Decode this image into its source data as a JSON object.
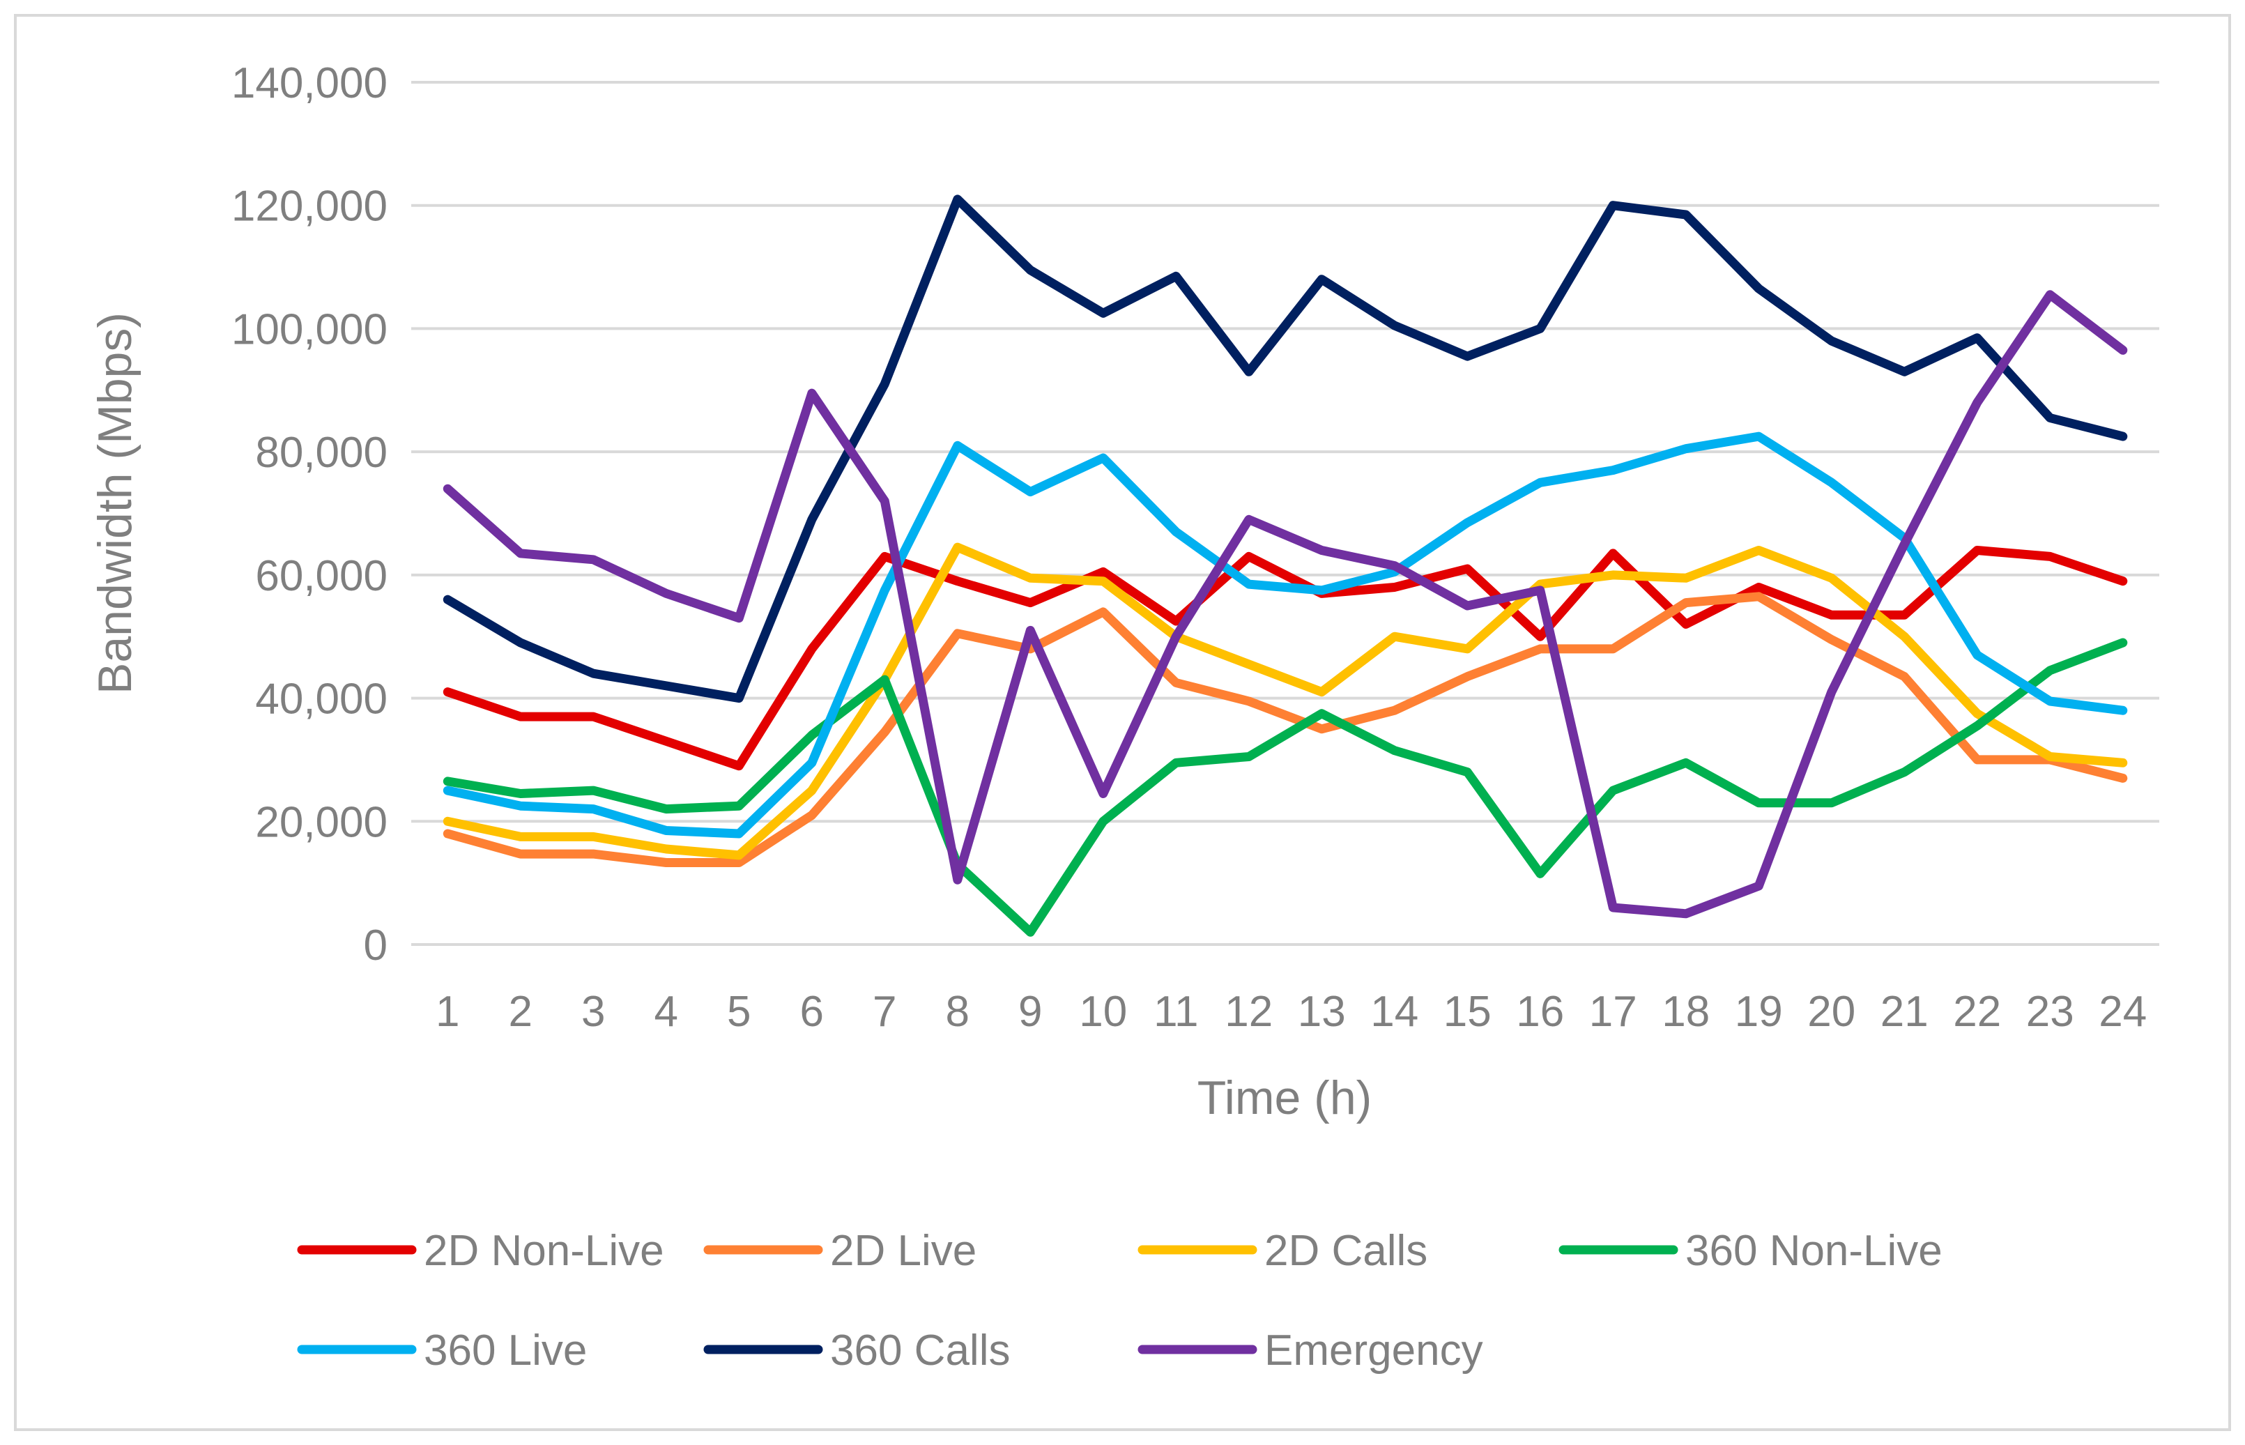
{
  "chart_data": {
    "type": "line",
    "title": "",
    "xlabel": "Time (h)",
    "ylabel": "Bandwidth (Mbps)",
    "ylim": [
      0,
      140000
    ],
    "yticks": [
      0,
      20000,
      40000,
      60000,
      80000,
      100000,
      120000,
      140000
    ],
    "ytick_labels": [
      "0",
      "20,000",
      "40,000",
      "60,000",
      "80,000",
      "100,000",
      "120,000",
      "140,000"
    ],
    "categories": [
      "1",
      "2",
      "3",
      "4",
      "5",
      "6",
      "7",
      "8",
      "9",
      "10",
      "11",
      "12",
      "13",
      "14",
      "15",
      "16",
      "17",
      "18",
      "19",
      "20",
      "21",
      "22",
      "23",
      "24"
    ],
    "grid": true,
    "legend_position": "bottom",
    "series": [
      {
        "name": "2D Non-Live",
        "color": "#e30000",
        "values": [
          41000,
          37000,
          37000,
          33000,
          29000,
          48000,
          63000,
          59000,
          55500,
          60500,
          52500,
          63000,
          57000,
          58000,
          61000,
          50000,
          63500,
          52000,
          58000,
          53500,
          53500,
          64000,
          63000,
          59000
        ]
      },
      {
        "name": "2D Live",
        "color": "#fe8033",
        "values": [
          18000,
          14700,
          14700,
          13300,
          13300,
          21000,
          34500,
          50500,
          48000,
          54000,
          42500,
          39500,
          35000,
          38000,
          43500,
          48000,
          48000,
          55500,
          56500,
          49500,
          43500,
          30000,
          30000,
          27000
        ]
      },
      {
        "name": "2D Calls",
        "color": "#ffc000",
        "values": [
          20000,
          17500,
          17500,
          15500,
          14500,
          25000,
          43000,
          64500,
          59500,
          59000,
          50000,
          45500,
          41000,
          50000,
          48000,
          58500,
          60000,
          59500,
          64000,
          59500,
          50000,
          37500,
          30500,
          29500
        ]
      },
      {
        "name": "360 Non-Live",
        "color": "#00b050",
        "values": [
          26500,
          24500,
          25000,
          22000,
          22500,
          34000,
          43000,
          13000,
          2000,
          20000,
          29500,
          30500,
          37500,
          31500,
          28000,
          11500,
          25000,
          29500,
          23000,
          23000,
          28000,
          35500,
          44500,
          49000
        ]
      },
      {
        "name": "360 Live",
        "color": "#00b0f0",
        "values": [
          25000,
          22500,
          22000,
          18500,
          18000,
          29500,
          57500,
          81000,
          73500,
          79000,
          67000,
          58500,
          57500,
          60500,
          68500,
          75000,
          77000,
          80500,
          82500,
          75000,
          66000,
          47000,
          39500,
          38000
        ]
      },
      {
        "name": "360 Calls",
        "color": "#002060",
        "values": [
          56000,
          49000,
          44000,
          42000,
          40000,
          69000,
          91000,
          121000,
          109500,
          102500,
          108500,
          93000,
          108000,
          100500,
          95500,
          100000,
          120000,
          118500,
          106500,
          98000,
          93000,
          98500,
          85500,
          82500
        ]
      },
      {
        "name": "Emergency",
        "color": "#7030a0",
        "values": [
          74000,
          63500,
          62500,
          57000,
          53000,
          89500,
          72000,
          10500,
          51000,
          24500,
          50000,
          69000,
          64000,
          61500,
          55000,
          57500,
          6000,
          5000,
          9500,
          41000,
          65000,
          88000,
          105500,
          96500
        ]
      }
    ]
  }
}
